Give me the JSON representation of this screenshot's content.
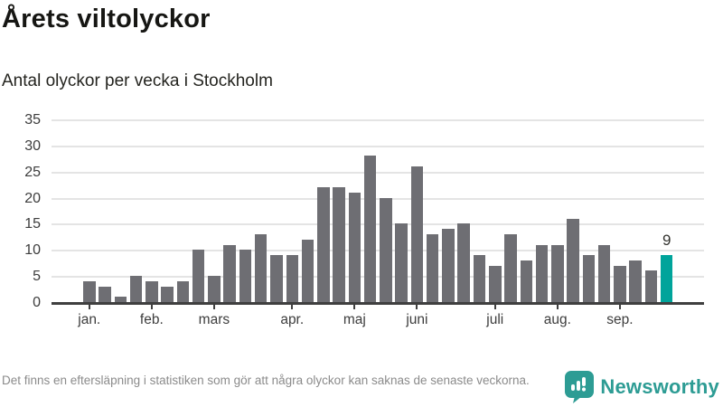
{
  "title": "Årets viltolyckor",
  "subtitle": "Antal olyckor per vecka i Stockholm",
  "footnote": "Det finns en eftersläpning i statistiken som gör att några olyckor kan saknas de senaste veckorna.",
  "logo": {
    "text": "Newsworthy"
  },
  "colors": {
    "bar": "#6e6e73",
    "highlight": "#00a49b",
    "gridline": "#e4e4e4",
    "axis": "#3f3f3f",
    "label": "#3d3d3d",
    "muted": "#8b8b8b",
    "brand": "#2d9c94"
  },
  "chart_data": {
    "type": "bar",
    "title": "Årets viltolyckor",
    "subtitle": "Antal olyckor per vecka i Stockholm",
    "xlabel": "",
    "ylabel": "Antal olyckor per vecka",
    "x_unit": "vecka",
    "ylim": [
      0,
      35
    ],
    "yticks": [
      0,
      5,
      10,
      15,
      20,
      25,
      30,
      35
    ],
    "grid": "horizontal",
    "values": [
      4,
      3,
      1,
      5,
      4,
      3,
      4,
      10,
      5,
      11,
      10,
      13,
      9,
      9,
      12,
      22,
      22,
      21,
      28,
      20,
      15,
      26,
      13,
      14,
      15,
      9,
      7,
      13,
      8,
      11,
      11,
      16,
      9,
      11,
      7,
      8,
      6,
      9
    ],
    "month_ticks": [
      {
        "label": "jan.",
        "bar_index": 0
      },
      {
        "label": "feb.",
        "bar_index": 4
      },
      {
        "label": "mars",
        "bar_index": 8
      },
      {
        "label": "apr.",
        "bar_index": 13
      },
      {
        "label": "maj",
        "bar_index": 17
      },
      {
        "label": "juni",
        "bar_index": 21
      },
      {
        "label": "juli",
        "bar_index": 26
      },
      {
        "label": "aug.",
        "bar_index": 30
      },
      {
        "label": "sep.",
        "bar_index": 34
      }
    ],
    "highlight_last_bar": true,
    "annotation": {
      "label": "9",
      "bar_index": 37
    }
  }
}
